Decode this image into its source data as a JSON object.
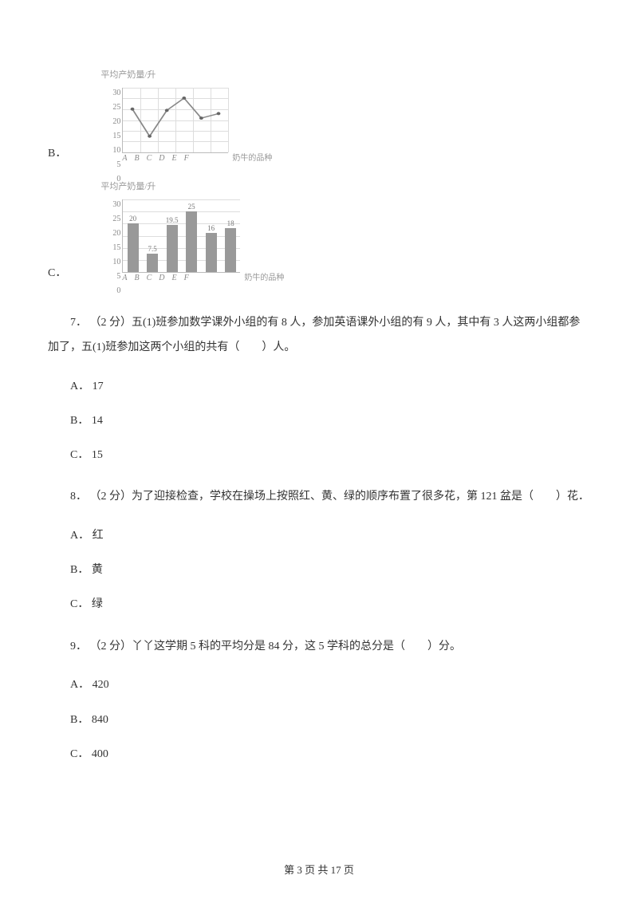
{
  "chart_b": {
    "option_label": "B．",
    "y_title": "平均产奶量/升",
    "x_title": "奶牛的品种",
    "type": "line",
    "y_ticks": [
      "30",
      "25",
      "20",
      "15",
      "10",
      "5",
      "0"
    ],
    "x_ticks": [
      "A",
      "B",
      "C",
      "D",
      "E",
      "F"
    ],
    "points": [
      {
        "x": 10,
        "y": 33
      },
      {
        "x": 28,
        "y": 75
      },
      {
        "x": 46,
        "y": 35
      },
      {
        "x": 64,
        "y": 16
      },
      {
        "x": 82,
        "y": 47
      },
      {
        "x": 100,
        "y": 40
      }
    ],
    "line_color": "#888888",
    "marker_color": "#666666",
    "background_color": "#ffffff",
    "grid_color": "#dddddd"
  },
  "chart_c": {
    "option_label": "C．",
    "y_title": "平均产奶量/升",
    "x_title": "奶牛的品种",
    "type": "bar",
    "y_ticks": [
      "30",
      "25",
      "20",
      "15",
      "10",
      "5",
      "0"
    ],
    "x_ticks": [
      "A",
      "B",
      "C",
      "D",
      "E",
      "F"
    ],
    "bar_labels": [
      "20",
      "7.5",
      "19.5",
      "25",
      "16",
      "18"
    ],
    "bar_values": [
      20,
      7.5,
      19.5,
      25,
      16,
      18
    ],
    "bar_color": "#999999",
    "background_color": "#ffffff",
    "grid_color": "#dddddd",
    "max_y": 30
  },
  "q7": {
    "text": "7．  （2 分）五(1)班参加数学课外小组的有 8 人，参加英语课外小组的有 9 人，其中有 3 人这两小组都参加了，五(1)班参加这两个小组的共有（　　）人。",
    "opt_a": "A． 17",
    "opt_b": "B． 14",
    "opt_c": "C． 15"
  },
  "q8": {
    "text": "8．  （2 分）为了迎接检查，学校在操场上按照红、黄、绿的顺序布置了很多花，第 121 盆是（　　）花．",
    "opt_a": "A． 红",
    "opt_b": "B． 黄",
    "opt_c": "C． 绿"
  },
  "q9": {
    "text": "9．  （2 分）丫丫这学期 5 科的平均分是 84 分，这 5 学科的总分是（　　）分。",
    "opt_a": "A． 420",
    "opt_b": "B． 840",
    "opt_c": "C． 400"
  },
  "footer": "第 3 页 共 17 页"
}
